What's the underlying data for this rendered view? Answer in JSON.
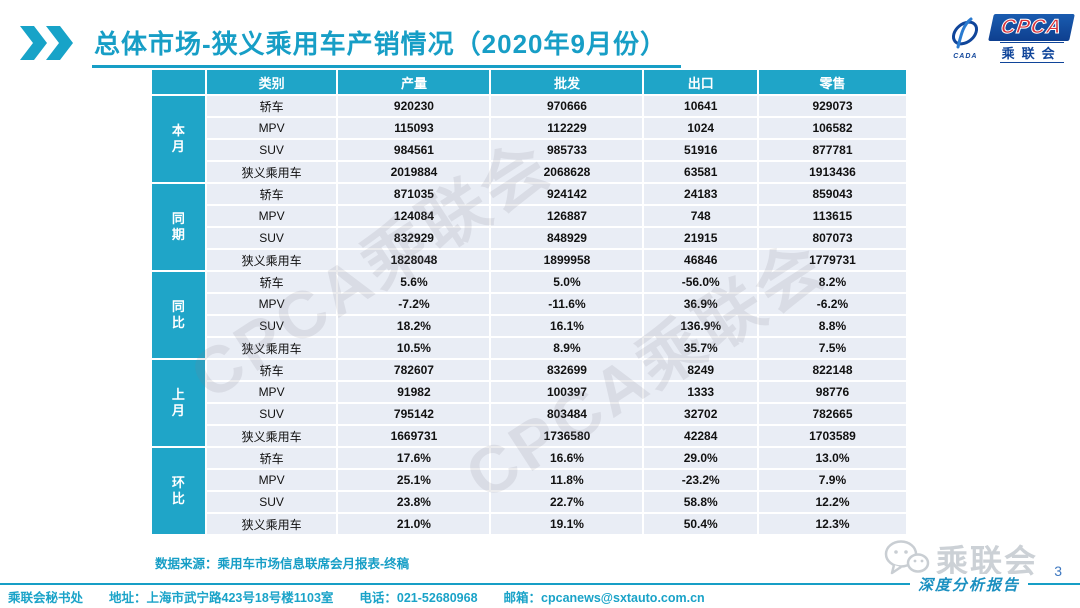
{
  "header": {
    "title": "总体市场-狭义乘用车产销情况（2020年9月份）",
    "logo": {
      "acronym": "CPCA",
      "name_cn": "乘联会",
      "emblem_sub": "CADA"
    }
  },
  "table": {
    "columns": [
      "类别",
      "产量",
      "批发",
      "出口",
      "零售"
    ],
    "groups": [
      {
        "label": "本月",
        "rows": [
          {
            "category": "轿车",
            "values": [
              "920230",
              "970666",
              "10641",
              "929073"
            ]
          },
          {
            "category": "MPV",
            "values": [
              "115093",
              "112229",
              "1024",
              "106582"
            ]
          },
          {
            "category": "SUV",
            "values": [
              "984561",
              "985733",
              "51916",
              "877781"
            ]
          },
          {
            "category": "狭义乘用车",
            "values": [
              "2019884",
              "2068628",
              "63581",
              "1913436"
            ]
          }
        ]
      },
      {
        "label": "同期",
        "rows": [
          {
            "category": "轿车",
            "values": [
              "871035",
              "924142",
              "24183",
              "859043"
            ]
          },
          {
            "category": "MPV",
            "values": [
              "124084",
              "126887",
              "748",
              "113615"
            ]
          },
          {
            "category": "SUV",
            "values": [
              "832929",
              "848929",
              "21915",
              "807073"
            ]
          },
          {
            "category": "狭义乘用车",
            "values": [
              "1828048",
              "1899958",
              "46846",
              "1779731"
            ]
          }
        ]
      },
      {
        "label": "同比",
        "rows": [
          {
            "category": "轿车",
            "values": [
              "5.6%",
              "5.0%",
              "-56.0%",
              "8.2%"
            ]
          },
          {
            "category": "MPV",
            "values": [
              "-7.2%",
              "-11.6%",
              "36.9%",
              "-6.2%"
            ]
          },
          {
            "category": "SUV",
            "values": [
              "18.2%",
              "16.1%",
              "136.9%",
              "8.8%"
            ]
          },
          {
            "category": "狭义乘用车",
            "values": [
              "10.5%",
              "8.9%",
              "35.7%",
              "7.5%"
            ]
          }
        ]
      },
      {
        "label": "上月",
        "rows": [
          {
            "category": "轿车",
            "values": [
              "782607",
              "832699",
              "8249",
              "822148"
            ]
          },
          {
            "category": "MPV",
            "values": [
              "91982",
              "100397",
              "1333",
              "98776"
            ]
          },
          {
            "category": "SUV",
            "values": [
              "795142",
              "803484",
              "32702",
              "782665"
            ]
          },
          {
            "category": "狭义乘用车",
            "values": [
              "1669731",
              "1736580",
              "42284",
              "1703589"
            ]
          }
        ]
      },
      {
        "label": "环比",
        "rows": [
          {
            "category": "轿车",
            "values": [
              "17.6%",
              "16.6%",
              "29.0%",
              "13.0%"
            ]
          },
          {
            "category": "MPV",
            "values": [
              "25.1%",
              "11.8%",
              "-23.2%",
              "7.9%"
            ]
          },
          {
            "category": "SUV",
            "values": [
              "23.8%",
              "22.7%",
              "58.8%",
              "12.2%"
            ]
          },
          {
            "category": "狭义乘用车",
            "values": [
              "21.0%",
              "19.1%",
              "50.4%",
              "12.3%"
            ]
          }
        ]
      }
    ]
  },
  "source_note": "数据来源：乘用车市场信息联席会月报表-终稿",
  "watermark": {
    "diagonal": "CPCA乘联会",
    "corner": "乘联会"
  },
  "page": {
    "number": "3",
    "report_label": "深度分析报告"
  },
  "footer": {
    "org": "乘联会秘书处",
    "address": "地址：上海市武宁路423号18号楼1103室",
    "phone": "电话：021-52680968",
    "email": "邮箱：cpcanews@sxtauto.com.cn"
  },
  "colors": {
    "teal": "#1fa5c8",
    "row_bg": "#e9edf5",
    "navy": "#10459A",
    "logo_red": "#d8323a",
    "page_blue": "#3e78c0"
  }
}
